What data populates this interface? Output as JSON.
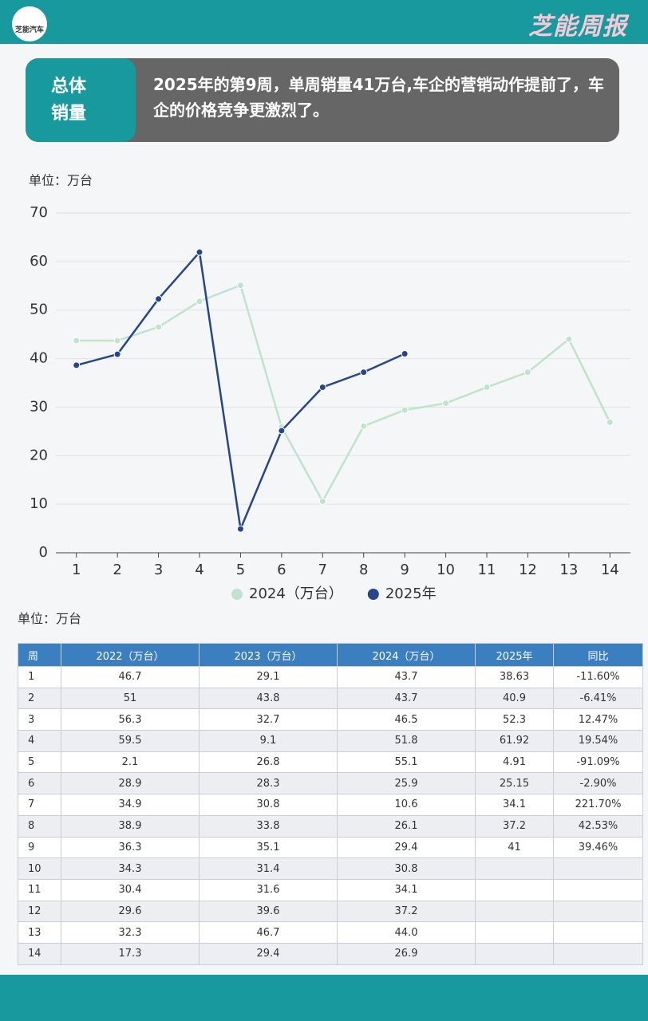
{
  "header": {
    "logo": "芝能汽车",
    "brand": "芝能周报"
  },
  "banner": {
    "label_lines": [
      "总体",
      "销量"
    ],
    "text": "2025年的第9周，单周销量41万台,车企的营销动作提前了，车企的价格竞争更激烈了。"
  },
  "chart_data": {
    "type": "line",
    "unit": "单位：万台",
    "x": [
      1,
      2,
      3,
      4,
      5,
      6,
      7,
      8,
      9,
      10,
      11,
      12,
      13,
      14
    ],
    "xlim": [
      0.5,
      14.5
    ],
    "xticks": [
      1,
      2,
      3,
      4,
      5,
      6,
      7,
      8,
      9,
      10,
      11,
      12,
      13,
      14
    ],
    "ylim": [
      0,
      70
    ],
    "yticks": [
      0,
      10,
      20,
      30,
      40,
      50,
      60,
      70
    ],
    "grid": true,
    "legend": "bottom",
    "series": [
      {
        "name": "2024（万台）",
        "color": "#bfe3cf",
        "values": [
          43.7,
          43.7,
          46.5,
          51.8,
          55.1,
          25.9,
          10.6,
          26.1,
          29.4,
          30.8,
          34.1,
          37.2,
          44.0,
          26.9
        ]
      },
      {
        "name": "2025年",
        "color": "#27468a",
        "values": [
          38.63,
          40.9,
          52.3,
          61.92,
          4.91,
          25.15,
          34.1,
          37.2,
          41,
          null,
          null,
          null,
          null,
          null
        ]
      }
    ]
  },
  "table": {
    "unit": "单位：万台",
    "columns": [
      "周",
      "2022（万台）",
      "2023（万台）",
      "2024（万台）",
      "2025年",
      "同比"
    ],
    "rows": [
      [
        "1",
        "46.7",
        "29.1",
        "43.7",
        "38.63",
        "-11.60%"
      ],
      [
        "2",
        "51",
        "43.8",
        "43.7",
        "40.9",
        "-6.41%"
      ],
      [
        "3",
        "56.3",
        "32.7",
        "46.5",
        "52.3",
        "12.47%"
      ],
      [
        "4",
        "59.5",
        "9.1",
        "51.8",
        "61.92",
        "19.54%"
      ],
      [
        "5",
        "2.1",
        "26.8",
        "55.1",
        "4.91",
        "-91.09%"
      ],
      [
        "6",
        "28.9",
        "28.3",
        "25.9",
        "25.15",
        "-2.90%"
      ],
      [
        "7",
        "34.9",
        "30.8",
        "10.6",
        "34.1",
        "221.70%"
      ],
      [
        "8",
        "38.9",
        "33.8",
        "26.1",
        "37.2",
        "42.53%"
      ],
      [
        "9",
        "36.3",
        "35.1",
        "29.4",
        "41",
        "39.46%"
      ],
      [
        "10",
        "34.3",
        "31.4",
        "30.8",
        "",
        ""
      ],
      [
        "11",
        "30.4",
        "31.6",
        "34.1",
        "",
        ""
      ],
      [
        "12",
        "29.6",
        "39.6",
        "37.2",
        "",
        ""
      ],
      [
        "13",
        "32.3",
        "46.7",
        "44.0",
        "",
        ""
      ],
      [
        "14",
        "17.3",
        "29.4",
        "26.9",
        "",
        ""
      ]
    ]
  }
}
